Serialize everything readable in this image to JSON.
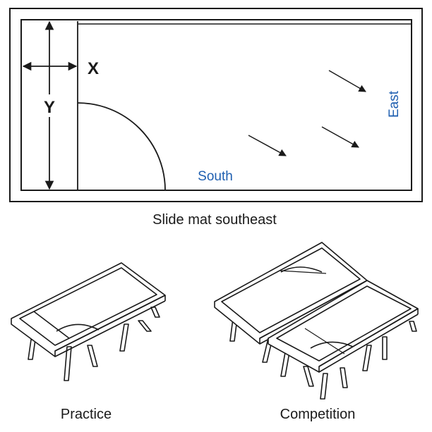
{
  "diagram": {
    "top": {
      "label_x": "X",
      "label_y": "Y",
      "label_south": "South",
      "label_east": "East",
      "caption": "Slide mat southeast"
    },
    "bottom": {
      "practice_caption": "Practice",
      "competition_caption": "Competition"
    }
  },
  "colors": {
    "line": "#1a1a1a",
    "direction_label": "#1f5fb0"
  }
}
